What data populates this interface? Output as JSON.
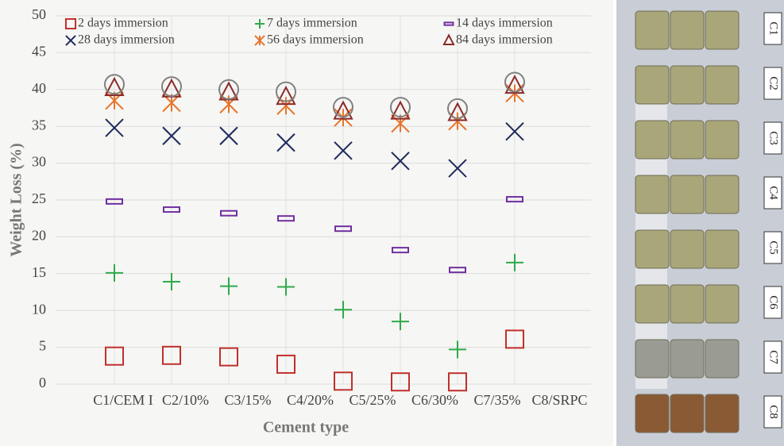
{
  "chart_data": {
    "type": "scatter",
    "x_label": "Cement type",
    "y_label": "Weight Loss (%)",
    "categories": [
      "C1/CEM I",
      "C2/10%",
      "C3/15%",
      "C4/20%",
      "C5/25%",
      "C6/30%",
      "C7/35%",
      "C8/SRPC"
    ],
    "ylim": [
      0,
      50
    ],
    "yticks": [
      0,
      5,
      10,
      15,
      20,
      25,
      30,
      35,
      40,
      45,
      50
    ],
    "grid": true,
    "series": [
      {
        "name": "2 days immersion",
        "color": "#c0302b",
        "marker": "square",
        "values": [
          3.8,
          3.9,
          3.7,
          2.7,
          0.4,
          0.3,
          0.3,
          6.1
        ]
      },
      {
        "name": "7 days immersion",
        "color": "#2eaa4a",
        "marker": "plus",
        "values": [
          15.1,
          13.9,
          13.3,
          13.2,
          10.1,
          8.5,
          4.7,
          16.5
        ]
      },
      {
        "name": "14 days immersion",
        "color": "#7030a0",
        "marker": "dash",
        "values": [
          24.8,
          23.7,
          23.2,
          22.5,
          21.1,
          18.2,
          15.5,
          25.1
        ]
      },
      {
        "name": "28 days immersion",
        "color": "#1f2a5c",
        "marker": "x",
        "values": [
          34.8,
          33.7,
          33.7,
          32.8,
          31.7,
          30.3,
          29.3,
          34.3
        ]
      },
      {
        "name": "56 days immersion",
        "color": "#e8742a",
        "marker": "asterisk",
        "values": [
          38.5,
          38.2,
          38.0,
          37.8,
          36.2,
          35.4,
          35.7,
          39.5
        ]
      },
      {
        "name": "84 days immersion",
        "color": "#8b2a2a",
        "marker": "triangle",
        "values": [
          40.2,
          40.0,
          39.6,
          39.0,
          37.0,
          37.0,
          36.8,
          40.5
        ]
      },
      {
        "color": "#808080",
        "marker": "circle",
        "values": [
          40.7,
          40.4,
          40.0,
          39.7,
          37.6,
          37.6,
          37.4,
          41.0
        ]
      }
    ]
  },
  "photo": {
    "labels": [
      "C1",
      "C2",
      "C3",
      "C4",
      "C5",
      "C6",
      "C7",
      "C8"
    ]
  }
}
